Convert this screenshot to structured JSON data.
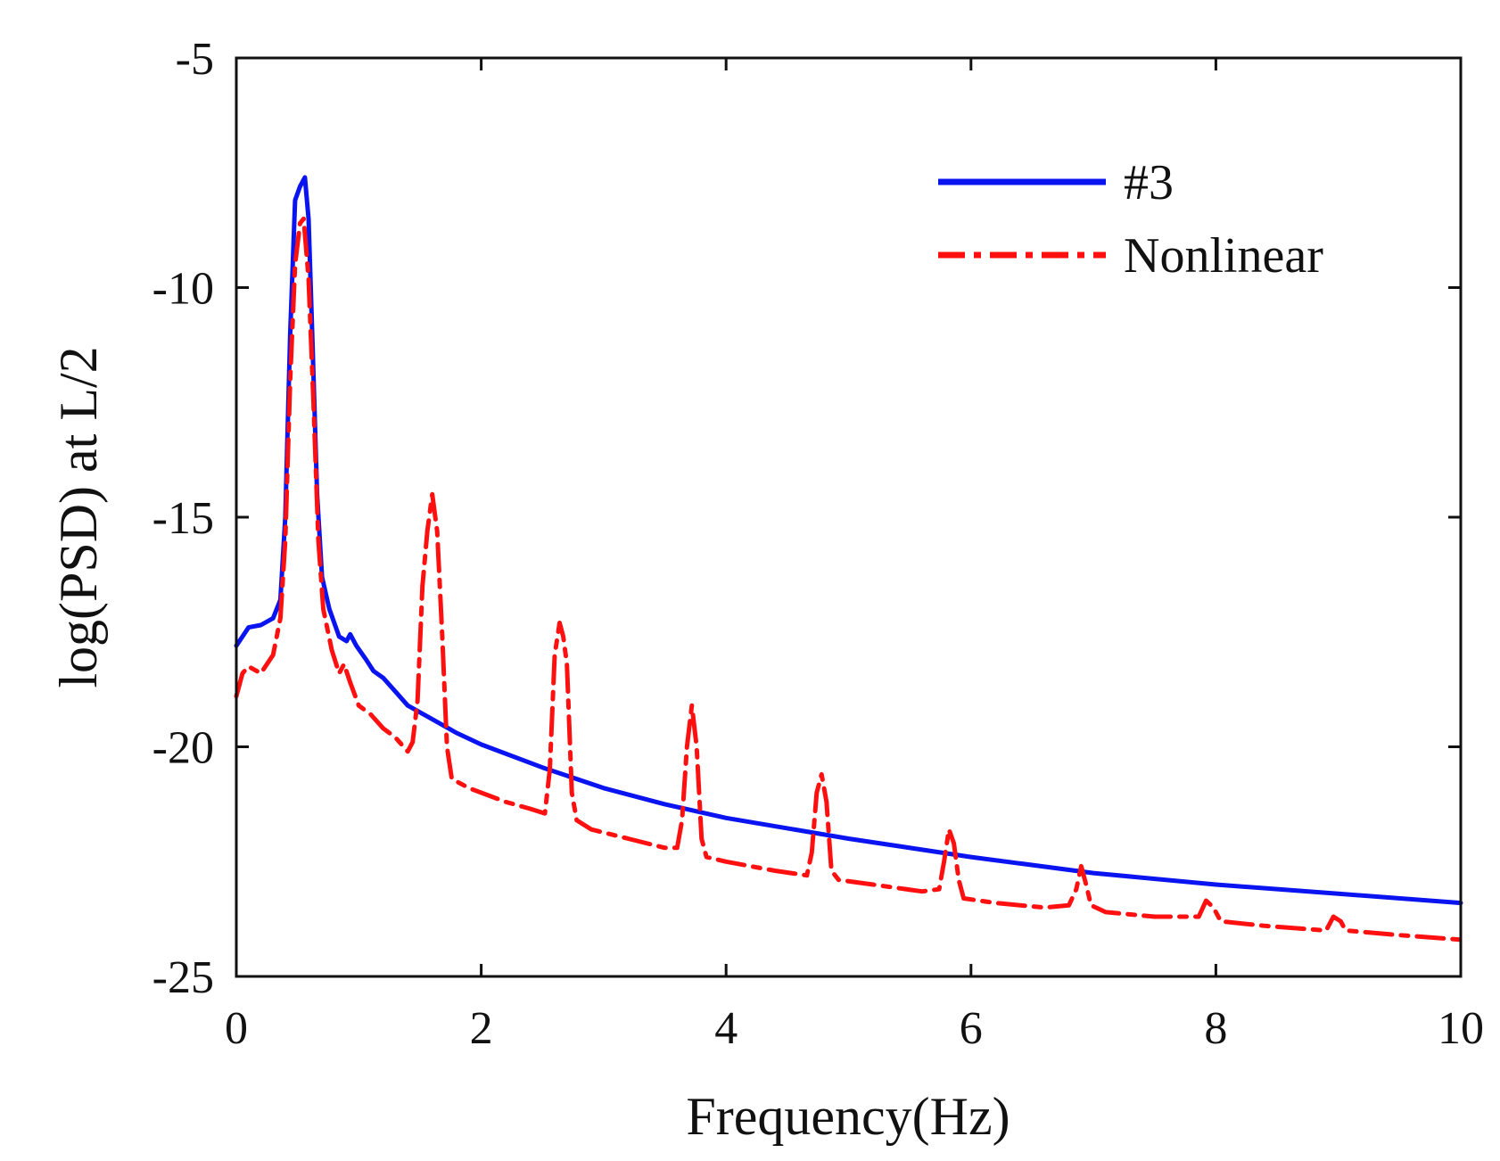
{
  "chart_data": {
    "type": "line",
    "title": "",
    "xlabel": "Frequency(Hz)",
    "ylabel": "log(PSD) at L/2",
    "xlim": [
      0,
      10
    ],
    "ylim": [
      -25,
      -5
    ],
    "xticks": [
      0,
      2,
      4,
      6,
      8,
      10
    ],
    "yticks": [
      -5,
      -10,
      -15,
      -20,
      -25
    ],
    "xtick_labels": [
      "0",
      "2",
      "4",
      "6",
      "8",
      "10"
    ],
    "ytick_labels": [
      "-5",
      "-10",
      "-15",
      "-20",
      "-25"
    ],
    "grid": false,
    "legend_position": "top-right",
    "series": [
      {
        "name": "#3",
        "color": "#0a14f0",
        "style": "solid",
        "points": [
          [
            0.0,
            -17.8
          ],
          [
            0.05,
            -17.6
          ],
          [
            0.1,
            -17.4
          ],
          [
            0.2,
            -17.35
          ],
          [
            0.3,
            -17.2
          ],
          [
            0.36,
            -16.8
          ],
          [
            0.4,
            -15.0
          ],
          [
            0.44,
            -11.0
          ],
          [
            0.48,
            -8.1
          ],
          [
            0.52,
            -7.8
          ],
          [
            0.56,
            -7.6
          ],
          [
            0.59,
            -8.5
          ],
          [
            0.62,
            -11.0
          ],
          [
            0.66,
            -14.5
          ],
          [
            0.7,
            -16.3
          ],
          [
            0.76,
            -17.0
          ],
          [
            0.84,
            -17.6
          ],
          [
            0.9,
            -17.7
          ],
          [
            0.93,
            -17.55
          ],
          [
            0.98,
            -17.8
          ],
          [
            1.06,
            -18.1
          ],
          [
            1.12,
            -18.35
          ],
          [
            1.2,
            -18.5
          ],
          [
            1.3,
            -18.8
          ],
          [
            1.4,
            -19.1
          ],
          [
            1.6,
            -19.4
          ],
          [
            1.8,
            -19.7
          ],
          [
            2.0,
            -19.95
          ],
          [
            2.5,
            -20.45
          ],
          [
            3.0,
            -20.9
          ],
          [
            3.5,
            -21.25
          ],
          [
            4.0,
            -21.55
          ],
          [
            5.0,
            -22.0
          ],
          [
            6.0,
            -22.4
          ],
          [
            7.0,
            -22.75
          ],
          [
            8.0,
            -23.0
          ],
          [
            9.0,
            -23.2
          ],
          [
            10.0,
            -23.4
          ]
        ]
      },
      {
        "name": "Nonlinear",
        "color": "#ff1010",
        "style": "dash-dot",
        "points": [
          [
            0.0,
            -18.9
          ],
          [
            0.05,
            -18.4
          ],
          [
            0.1,
            -18.25
          ],
          [
            0.2,
            -18.4
          ],
          [
            0.3,
            -18.0
          ],
          [
            0.36,
            -17.2
          ],
          [
            0.4,
            -15.5
          ],
          [
            0.44,
            -12.0
          ],
          [
            0.48,
            -9.5
          ],
          [
            0.52,
            -8.6
          ],
          [
            0.55,
            -8.5
          ],
          [
            0.59,
            -9.8
          ],
          [
            0.63,
            -12.5
          ],
          [
            0.67,
            -15.5
          ],
          [
            0.71,
            -17.0
          ],
          [
            0.78,
            -17.9
          ],
          [
            0.84,
            -18.4
          ],
          [
            0.88,
            -18.2
          ],
          [
            0.93,
            -18.6
          ],
          [
            1.0,
            -19.1
          ],
          [
            1.1,
            -19.3
          ],
          [
            1.2,
            -19.6
          ],
          [
            1.3,
            -19.8
          ],
          [
            1.4,
            -20.1
          ],
          [
            1.44,
            -19.9
          ],
          [
            1.48,
            -19.0
          ],
          [
            1.52,
            -16.5
          ],
          [
            1.56,
            -15.3
          ],
          [
            1.6,
            -14.5
          ],
          [
            1.64,
            -15.3
          ],
          [
            1.68,
            -17.5
          ],
          [
            1.72,
            -20.0
          ],
          [
            1.76,
            -20.7
          ],
          [
            1.9,
            -20.9
          ],
          [
            2.2,
            -21.2
          ],
          [
            2.4,
            -21.35
          ],
          [
            2.52,
            -21.45
          ],
          [
            2.56,
            -20.5
          ],
          [
            2.6,
            -18.0
          ],
          [
            2.64,
            -17.3
          ],
          [
            2.67,
            -17.6
          ],
          [
            2.7,
            -18.2
          ],
          [
            2.74,
            -21.0
          ],
          [
            2.78,
            -21.6
          ],
          [
            2.9,
            -21.8
          ],
          [
            3.2,
            -22.0
          ],
          [
            3.5,
            -22.2
          ],
          [
            3.6,
            -22.2
          ],
          [
            3.64,
            -21.6
          ],
          [
            3.68,
            -20.0
          ],
          [
            3.72,
            -19.1
          ],
          [
            3.76,
            -20.0
          ],
          [
            3.8,
            -22.0
          ],
          [
            3.84,
            -22.4
          ],
          [
            4.0,
            -22.5
          ],
          [
            4.4,
            -22.7
          ],
          [
            4.66,
            -22.8
          ],
          [
            4.7,
            -22.3
          ],
          [
            4.74,
            -21.0
          ],
          [
            4.78,
            -20.6
          ],
          [
            4.82,
            -21.2
          ],
          [
            4.86,
            -22.7
          ],
          [
            4.92,
            -22.9
          ],
          [
            5.2,
            -23.0
          ],
          [
            5.6,
            -23.15
          ],
          [
            5.74,
            -23.1
          ],
          [
            5.78,
            -22.5
          ],
          [
            5.82,
            -21.8
          ],
          [
            5.86,
            -22.1
          ],
          [
            5.9,
            -22.9
          ],
          [
            5.94,
            -23.3
          ],
          [
            6.2,
            -23.4
          ],
          [
            6.6,
            -23.5
          ],
          [
            6.8,
            -23.45
          ],
          [
            6.86,
            -23.1
          ],
          [
            6.9,
            -22.6
          ],
          [
            6.94,
            -23.0
          ],
          [
            6.98,
            -23.45
          ],
          [
            7.1,
            -23.6
          ],
          [
            7.5,
            -23.7
          ],
          [
            7.86,
            -23.7
          ],
          [
            7.92,
            -23.35
          ],
          [
            7.98,
            -23.5
          ],
          [
            8.04,
            -23.8
          ],
          [
            8.4,
            -23.9
          ],
          [
            8.9,
            -24.0
          ],
          [
            8.96,
            -23.7
          ],
          [
            9.02,
            -23.8
          ],
          [
            9.06,
            -24.0
          ],
          [
            9.5,
            -24.1
          ],
          [
            10.0,
            -24.2
          ]
        ]
      }
    ]
  }
}
